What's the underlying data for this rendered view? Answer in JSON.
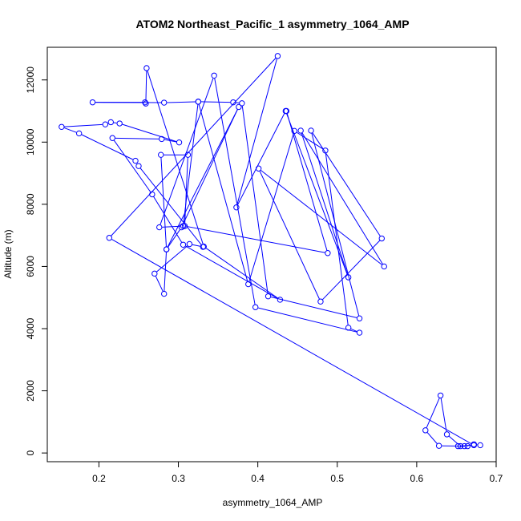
{
  "chart_data": {
    "type": "scatter",
    "title": "ATOM2 Northeast_Pacific_1 asymmetry_1064_AMP",
    "xlabel": "asymmetry_1064_AMP",
    "ylabel": "Altitude (m)",
    "xlim": [
      0.135,
      0.7
    ],
    "ylim": [
      -280,
      13050
    ],
    "xticks": [
      0.2,
      0.3,
      0.4,
      0.5,
      0.6,
      0.7
    ],
    "yticks": [
      0,
      2000,
      4000,
      6000,
      8000,
      10000,
      12000
    ],
    "style": "points connected by lines",
    "color": "#0000ff",
    "grid": false,
    "series": [
      {
        "points": [
          [
            0.68,
            250
          ],
          [
            0.672,
            280
          ],
          [
            0.66,
            220
          ],
          [
            0.655,
            220
          ],
          [
            0.638,
            600
          ],
          [
            0.63,
            1850
          ],
          [
            0.611,
            730
          ],
          [
            0.628,
            230
          ],
          [
            0.664,
            220
          ],
          [
            0.652,
            220
          ],
          [
            0.672,
            250
          ],
          [
            0.213,
            6920
          ],
          [
            0.425,
            12770
          ],
          [
            0.373,
            7900
          ],
          [
            0.435,
            11000
          ],
          [
            0.514,
            5650
          ],
          [
            0.454,
            10370
          ],
          [
            0.559,
            6000
          ],
          [
            0.401,
            9150
          ],
          [
            0.479,
            4870
          ],
          [
            0.556,
            6900
          ],
          [
            0.467,
            10370
          ],
          [
            0.528,
            4330
          ],
          [
            0.413,
            5040
          ],
          [
            0.38,
            11250
          ],
          [
            0.369,
            11280
          ],
          [
            0.325,
            11300
          ],
          [
            0.388,
            5430
          ],
          [
            0.446,
            10360
          ],
          [
            0.485,
            9730
          ],
          [
            0.514,
            4030
          ],
          [
            0.528,
            3870
          ],
          [
            0.397,
            4690
          ],
          [
            0.345,
            12140
          ],
          [
            0.276,
            7260
          ],
          [
            0.306,
            7300
          ],
          [
            0.325,
            11300
          ],
          [
            0.282,
            11270
          ],
          [
            0.192,
            11280
          ],
          [
            0.258,
            11280
          ],
          [
            0.259,
            11240
          ],
          [
            0.26,
            12380
          ],
          [
            0.332,
            6640
          ],
          [
            0.428,
            4930
          ],
          [
            0.306,
            6700
          ],
          [
            0.267,
            8320
          ],
          [
            0.217,
            10130
          ],
          [
            0.279,
            10100
          ],
          [
            0.301,
            9990
          ],
          [
            0.226,
            10600
          ],
          [
            0.215,
            10640
          ],
          [
            0.208,
            10570
          ],
          [
            0.153,
            10490
          ],
          [
            0.175,
            10280
          ],
          [
            0.246,
            9400
          ],
          [
            0.25,
            9230
          ],
          [
            0.331,
            6630
          ],
          [
            0.314,
            6720
          ],
          [
            0.27,
            5770
          ],
          [
            0.282,
            5120
          ],
          [
            0.285,
            6550
          ],
          [
            0.304,
            7260
          ],
          [
            0.376,
            11130
          ],
          [
            0.285,
            6550
          ],
          [
            0.278,
            9590
          ],
          [
            0.312,
            9590
          ],
          [
            0.308,
            7300
          ],
          [
            0.488,
            6430
          ],
          [
            0.436,
            11000
          ]
        ]
      }
    ]
  }
}
